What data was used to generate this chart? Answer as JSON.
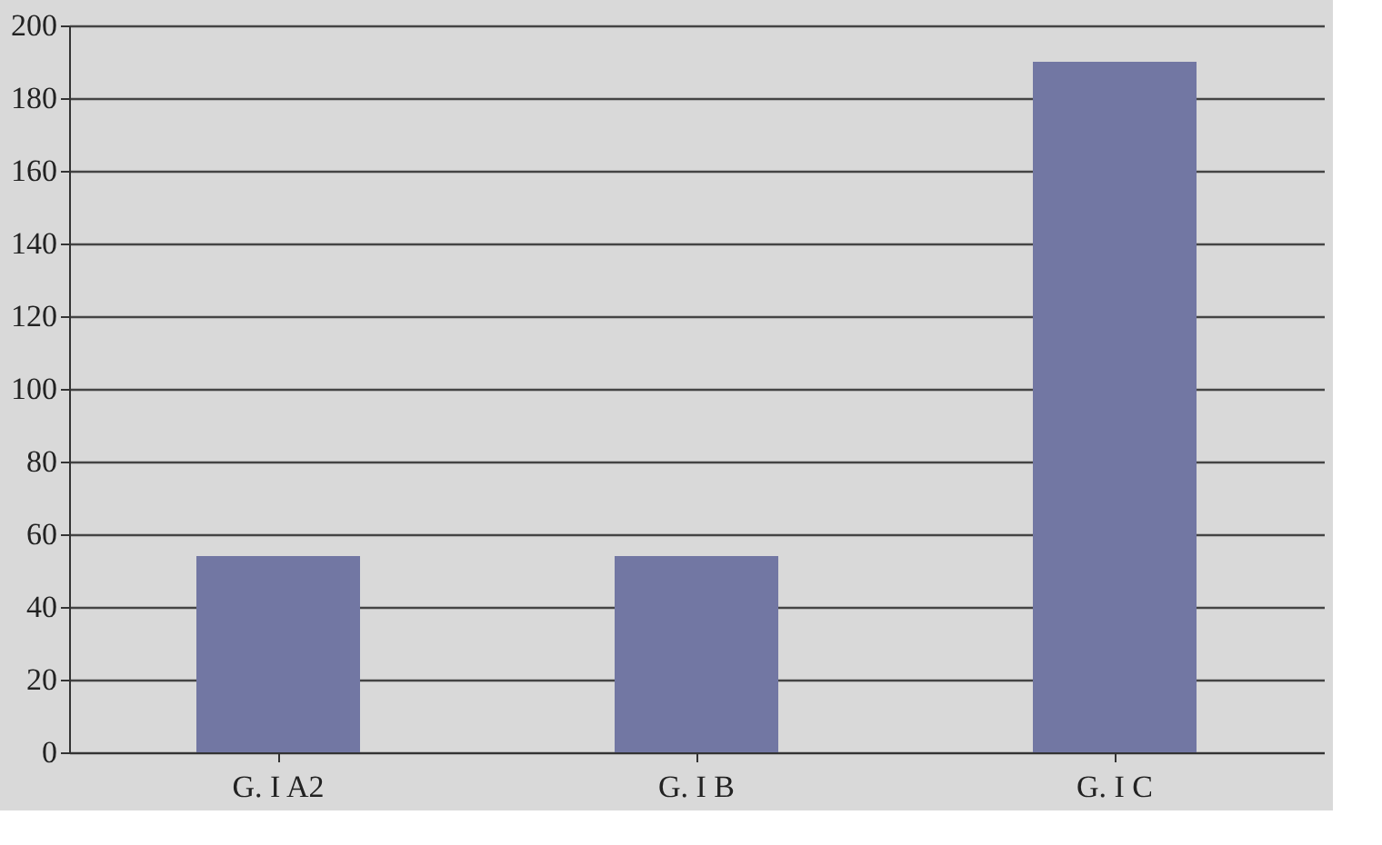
{
  "chart_data": {
    "type": "bar",
    "categories": [
      "G. I A2",
      "G. I B",
      "G. I C"
    ],
    "values": [
      54,
      54,
      190
    ],
    "color": "#7277a3",
    "ylim": [
      0,
      200
    ],
    "yticks": [
      0,
      20,
      40,
      60,
      80,
      100,
      120,
      140,
      160,
      180,
      200
    ],
    "grid": "y"
  }
}
